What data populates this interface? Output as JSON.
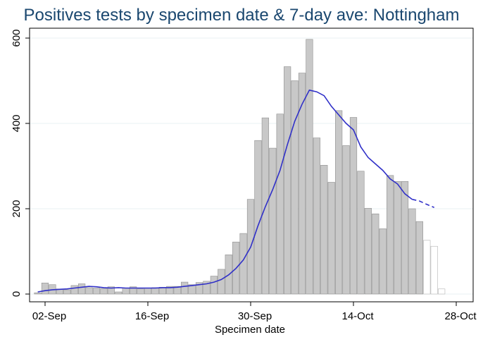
{
  "chart_data": {
    "type": "bar",
    "title": "Positives tests by specimen date & 7-day ave: Nottingham",
    "xlabel": "Specimen date",
    "ylabel": "",
    "ylim": [
      0,
      600
    ],
    "yticks": [
      0,
      200,
      400,
      600
    ],
    "xticks": [
      {
        "label": "02-Sep",
        "day": 2
      },
      {
        "label": "16-Sep",
        "day": 16
      },
      {
        "label": "30-Sep",
        "day": 30
      },
      {
        "label": "14-Oct",
        "day": 44
      },
      {
        "label": "28-Oct",
        "day": 58
      }
    ],
    "grid": "horizontal",
    "legend": "none",
    "colors": {
      "bar_fill": "#c8c8c8",
      "bar_stroke": "#8f8f8f",
      "incomplete_fill": "#ffffff",
      "incomplete_stroke": "#b4b4b4",
      "line": "#3030c8",
      "title": "#1a476f"
    },
    "series": [
      {
        "kind": "bars",
        "days": [
          1,
          2,
          3,
          4,
          5,
          6,
          7,
          8,
          9,
          10,
          11,
          12,
          13,
          14,
          15,
          16,
          17,
          18,
          19,
          20,
          21,
          22,
          23,
          24,
          25,
          26,
          27,
          28,
          29,
          30,
          31,
          32,
          33,
          34,
          35,
          36,
          37,
          38,
          39,
          40,
          41,
          42,
          43,
          44,
          45,
          46,
          47,
          48,
          49,
          50,
          51,
          52,
          53,
          54,
          55,
          56,
          57
        ],
        "values": [
          3,
          26,
          22,
          12,
          10,
          20,
          24,
          15,
          14,
          13,
          17,
          5,
          14,
          17,
          12,
          14,
          15,
          16,
          18,
          18,
          28,
          22,
          27,
          30,
          42,
          58,
          92,
          122,
          142,
          222,
          360,
          413,
          342,
          422,
          533,
          500,
          518,
          597,
          366,
          302,
          262,
          430,
          348,
          414,
          288,
          201,
          188,
          153,
          278,
          264,
          264,
          200,
          170,
          126,
          112,
          12,
          0
        ],
        "incomplete_from_day": 54
      },
      {
        "kind": "line",
        "x": [
          1,
          2,
          3,
          4,
          5,
          6,
          7,
          8,
          9,
          10,
          11,
          12,
          13,
          14,
          15,
          16,
          17,
          18,
          19,
          20,
          21,
          22,
          23,
          24,
          25,
          26,
          27,
          28,
          29,
          30,
          31,
          32,
          33,
          34,
          35,
          36,
          37,
          38,
          39,
          40,
          41,
          42,
          43,
          44,
          45,
          46,
          47,
          48,
          49,
          50,
          51,
          52,
          53,
          54,
          55
        ],
        "y": [
          5,
          8,
          10,
          11,
          12,
          14,
          16,
          18,
          17,
          15,
          14,
          15,
          14,
          14,
          14,
          14,
          14,
          15,
          15,
          16,
          18,
          20,
          22,
          24,
          28,
          34,
          45,
          60,
          80,
          110,
          160,
          205,
          245,
          290,
          350,
          405,
          445,
          478,
          474,
          465,
          440,
          420,
          400,
          385,
          345,
          320,
          305,
          290,
          270,
          258,
          235,
          222,
          218,
          210,
          203
        ],
        "dashed_from_x": 52
      }
    ]
  }
}
